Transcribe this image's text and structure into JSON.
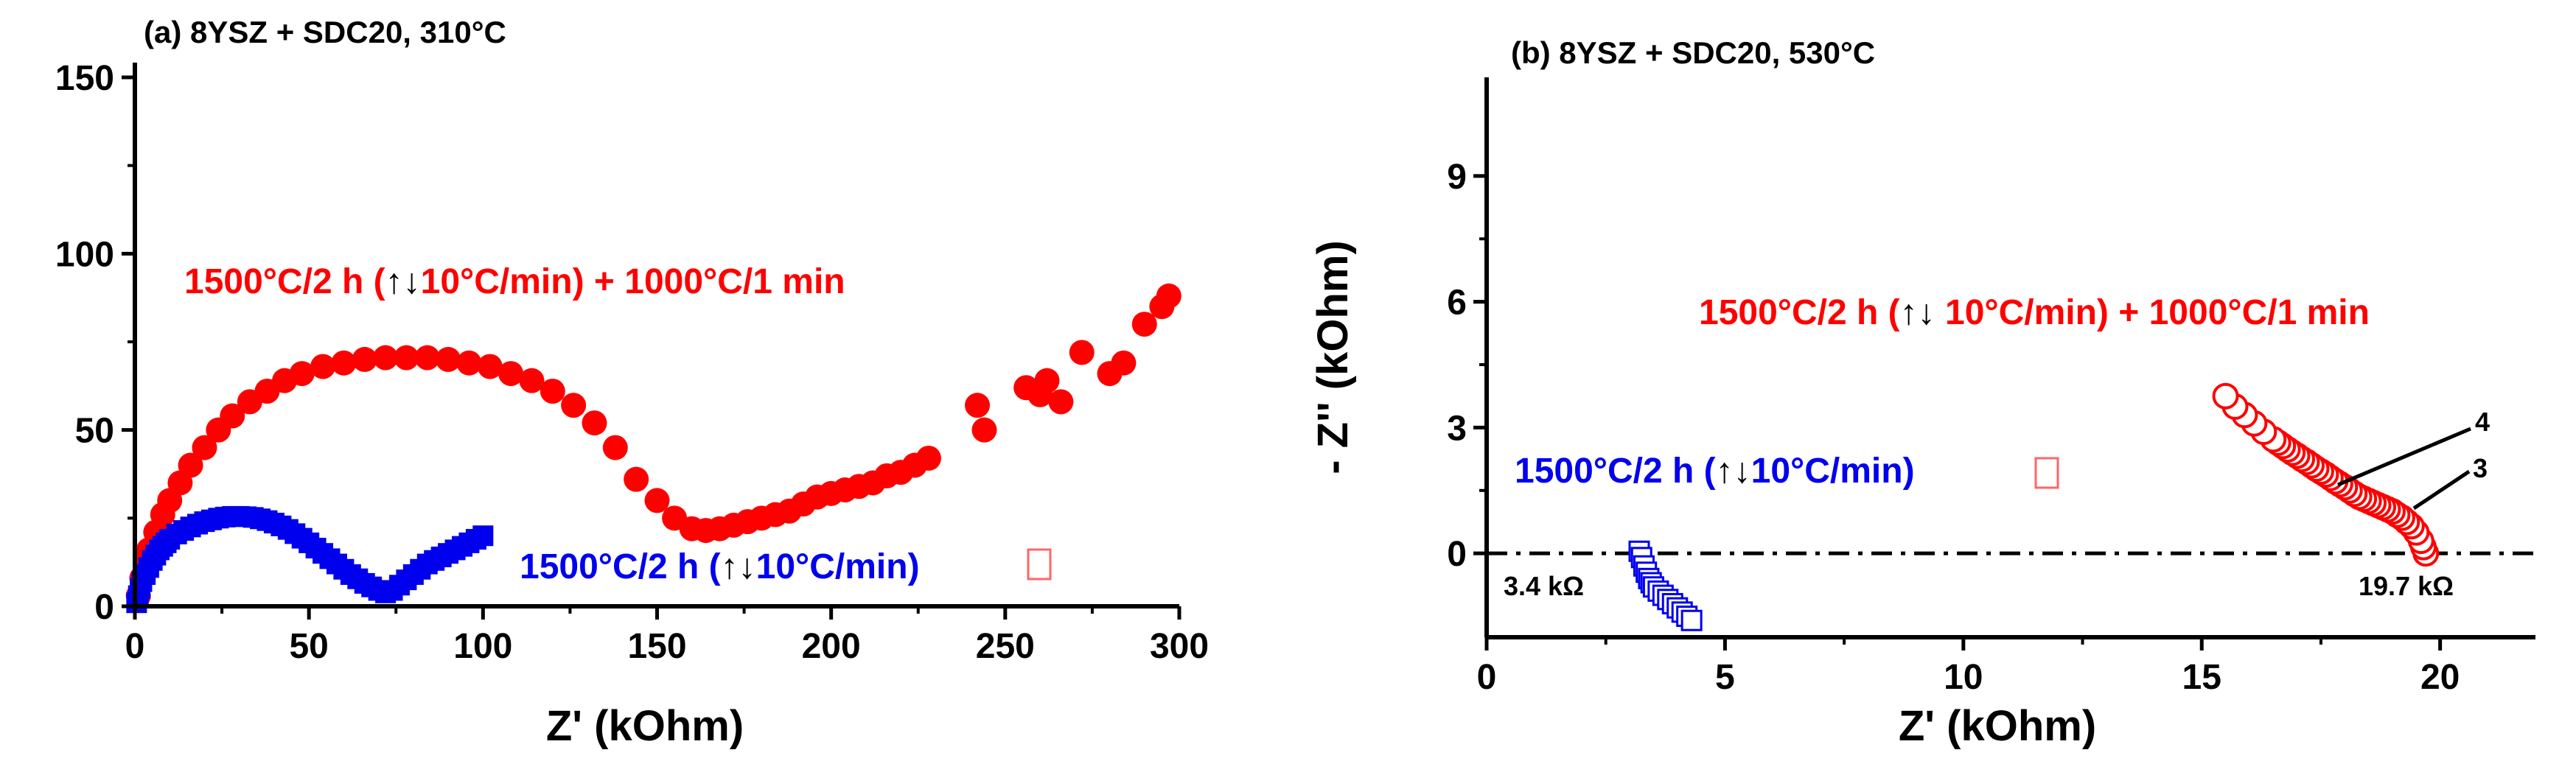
{
  "chart_data": [
    {
      "type": "scatter",
      "panel_label": "(a) 8YSZ + SDC20, 310°C",
      "xlabel": "Z' (kOhm)",
      "ylabel": "",
      "xlim": [
        0,
        300
      ],
      "ylim": [
        0,
        150
      ],
      "xticks": [
        "0",
        "50",
        "100",
        "150",
        "200",
        "250",
        "300"
      ],
      "yticks": [
        "0",
        "50",
        "100",
        "150"
      ],
      "series": [
        {
          "name": "1500°C/2 h (↑↓10°C/min) + 1000°C/1 min",
          "label_main": "1500°C/2 h (",
          "label_arrows": "↑↓",
          "label_tail": "10°C/min) + 1000°C/1 min",
          "color": "#ff0000",
          "marker": "circle-filled",
          "x": [
            1,
            2,
            3,
            4,
            6,
            8,
            10,
            13,
            16,
            20,
            24,
            28,
            33,
            38,
            43,
            48,
            54,
            60,
            66,
            72,
            78,
            84,
            90,
            96,
            102,
            108,
            114,
            120,
            126,
            132,
            138,
            144,
            150,
            155,
            160,
            164,
            168,
            172,
            176,
            180,
            184,
            188,
            192,
            196,
            200,
            204,
            208,
            212,
            216,
            220,
            224,
            228,
            242,
            244,
            256,
            260,
            262,
            266,
            272,
            280,
            284,
            290,
            295,
            297
          ],
          "y": [
            3,
            8,
            12,
            16,
            21,
            26,
            30,
            35,
            40,
            45,
            50,
            54,
            58,
            61,
            64,
            66,
            68,
            69,
            70,
            70.5,
            70.5,
            70.5,
            70,
            69,
            68,
            66,
            64,
            61,
            57,
            52,
            45,
            36,
            30,
            25,
            22,
            21.5,
            22,
            23,
            24,
            25,
            26,
            27,
            29,
            31,
            32,
            33,
            34,
            35,
            37,
            38,
            40,
            42,
            57,
            50,
            62,
            60,
            64,
            58,
            72,
            66,
            69,
            80,
            85,
            88
          ]
        },
        {
          "name": "1500°C/2 h (↑↓10°C/min)",
          "label_main": "1500°C/2 h (",
          "label_arrows": "↑↓",
          "label_tail": "10°C/min)",
          "color": "#0000ee",
          "marker": "square-filled",
          "x": [
            0.5,
            1,
            1.5,
            2,
            3,
            4,
            5,
            6,
            7,
            8,
            9,
            10,
            12,
            14,
            16,
            18,
            20,
            22,
            24,
            26,
            28,
            30,
            32,
            34,
            36,
            38,
            40,
            42,
            44,
            46,
            48,
            50,
            52,
            54,
            56,
            58,
            60,
            62,
            64,
            66,
            68,
            70,
            72,
            74,
            76,
            78,
            80,
            82,
            84,
            86,
            88,
            90,
            92,
            94,
            96,
            98,
            100
          ],
          "y": [
            1,
            3,
            5,
            7,
            9,
            11,
            13,
            14.5,
            16,
            17,
            18,
            19,
            20.5,
            21.5,
            22.5,
            23.3,
            24,
            24.5,
            25,
            25.3,
            25.5,
            25.5,
            25.4,
            25.2,
            24.8,
            24.3,
            23.6,
            22.8,
            21.8,
            20.6,
            19.3,
            18,
            16.5,
            15,
            13.5,
            12,
            10.5,
            9,
            7.8,
            6.5,
            5.5,
            4.5,
            3.8,
            4.5,
            6,
            7.5,
            9,
            10.5,
            12,
            13,
            14,
            15,
            16,
            17,
            18,
            19,
            20
          ]
        }
      ]
    },
    {
      "type": "scatter",
      "panel_label": "(b) 8YSZ + SDC20, 530°C",
      "xlabel": "Z' (kOhm)",
      "ylabel": "- Z'' (kOhm)",
      "xlim": [
        0,
        22
      ],
      "ylim": [
        -2,
        11
      ],
      "xticks": [
        "0",
        "5",
        "10",
        "15",
        "20"
      ],
      "yticks": [
        "0",
        "3",
        "6",
        "9"
      ],
      "series": [
        {
          "name": "1500°C/2 h (↑↓ 10°C/min) + 1000°C/1 min",
          "label_main": "1500°C/2 h (",
          "label_arrows": "↑↓",
          "label_tail": " 10°C/min) + 1000°C/1 min",
          "color": "#ff0000",
          "marker": "circle-open",
          "x": [
            19.7,
            19.65,
            19.6,
            19.5,
            19.4,
            19.3,
            19.2,
            19.1,
            19.0,
            18.9,
            18.8,
            18.7,
            18.6,
            18.5,
            18.4,
            18.3,
            18.2,
            18.1,
            18.0,
            17.9,
            17.8,
            17.7,
            17.6,
            17.5,
            17.4,
            17.3,
            17.2,
            17.1,
            17.0,
            16.9,
            16.8,
            16.7,
            16.6,
            16.5,
            16.3,
            16.1,
            15.9,
            15.7,
            15.5
          ],
          "y": [
            0,
            0.15,
            0.3,
            0.5,
            0.65,
            0.75,
            0.85,
            0.92,
            1.0,
            1.05,
            1.1,
            1.15,
            1.2,
            1.25,
            1.3,
            1.35,
            1.42,
            1.5,
            1.58,
            1.65,
            1.72,
            1.8,
            1.88,
            1.95,
            2.02,
            2.1,
            2.18,
            2.25,
            2.33,
            2.4,
            2.48,
            2.56,
            2.64,
            2.72,
            2.9,
            3.1,
            3.3,
            3.5,
            3.75
          ]
        },
        {
          "name": "1500°C/2 h (↑↓10°C/min)",
          "label_main": "1500°C/2 h (",
          "label_arrows": "↑↓",
          "label_tail": "10°C/min)",
          "color": "#0000ee",
          "marker": "square-open",
          "x": [
            3.2,
            3.25,
            3.3,
            3.35,
            3.4,
            3.45,
            3.5,
            3.6,
            3.7,
            3.8,
            3.9,
            4.0,
            4.1,
            4.2,
            4.3
          ],
          "y": [
            0.05,
            -0.1,
            -0.3,
            -0.45,
            -0.6,
            -0.7,
            -0.8,
            -0.9,
            -1.0,
            -1.1,
            -1.2,
            -1.3,
            -1.4,
            -1.5,
            -1.6
          ]
        }
      ],
      "annotations": [
        {
          "text": "3.4 kΩ"
        },
        {
          "text": "19.7 kΩ"
        },
        {
          "text": "4"
        },
        {
          "text": "3"
        }
      ]
    }
  ]
}
